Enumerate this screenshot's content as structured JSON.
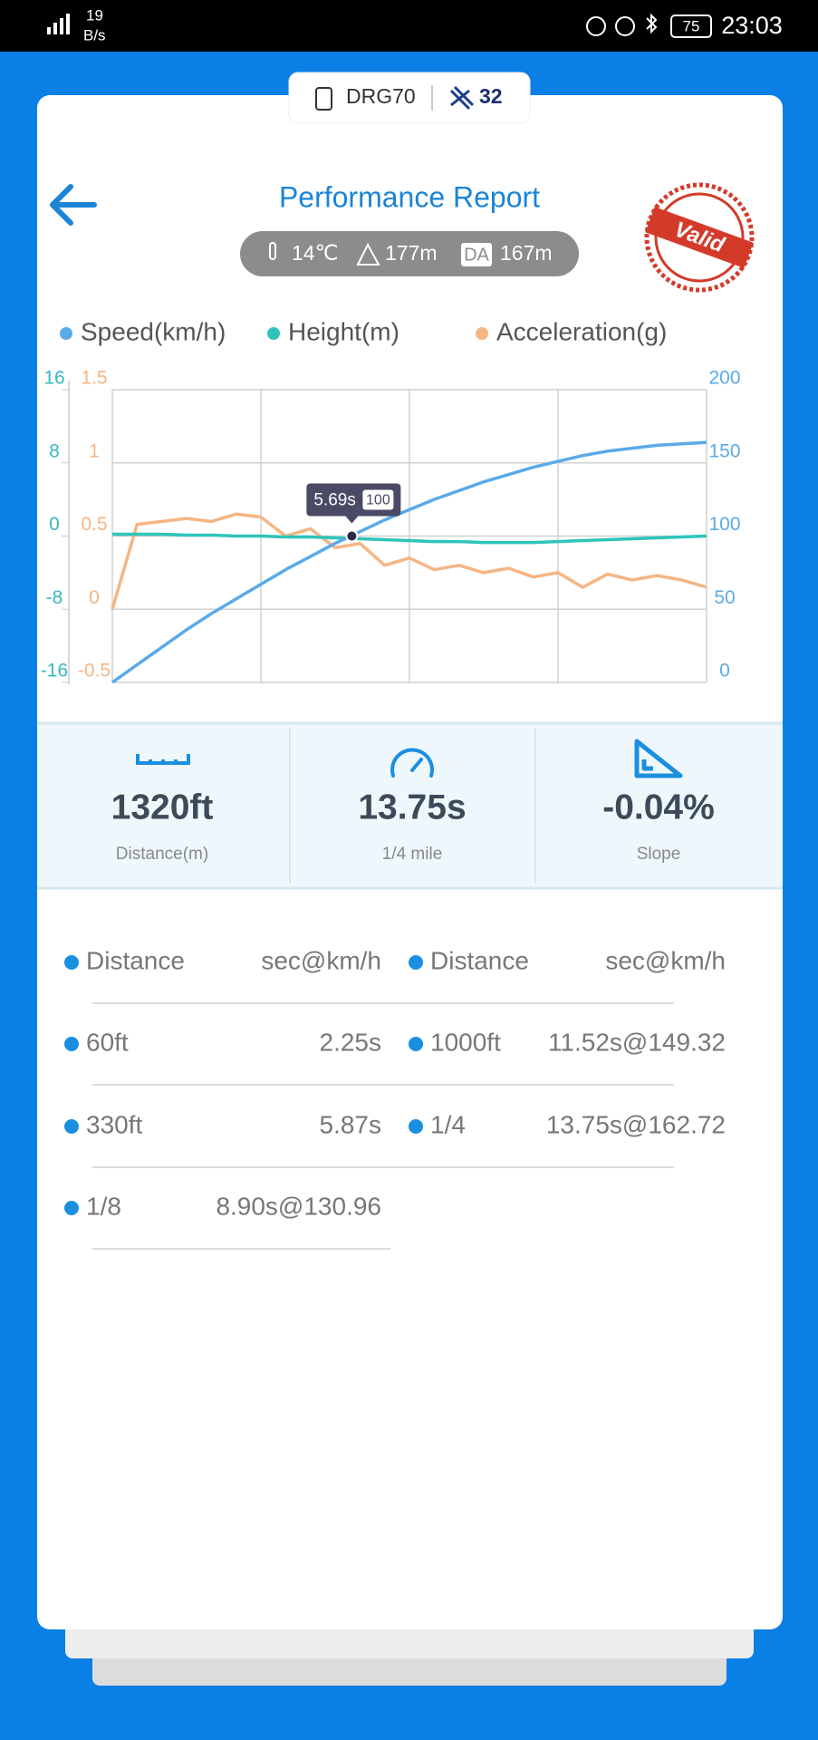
{
  "status_bar": {
    "network_rate": "19",
    "network_unit": "B/s",
    "battery": "75",
    "time": "23:03"
  },
  "device": {
    "name": "DRG70",
    "satellites": "32"
  },
  "header": {
    "title": "Performance Report",
    "stamp": "Valid"
  },
  "conditions": {
    "temperature": "14℃",
    "altitude": "177m",
    "da_badge": "DA",
    "density_altitude": "167m"
  },
  "chart_data": {
    "type": "line",
    "ylim": [
      -16,
      16
    ],
    "yticks": [
      -16,
      -8,
      0,
      8,
      16
    ],
    "y3lim": [
      -0.5,
      1.5
    ],
    "y3ticks": [
      -0.5,
      0,
      0.5,
      1,
      1.5
    ],
    "y2lim": [
      0,
      200
    ],
    "y2ticks": [
      0,
      50,
      100,
      150,
      200
    ],
    "grid": true,
    "tooltip": {
      "label": "5.69s",
      "value": 100
    },
    "series": [
      {
        "name": "Speed(km/h)",
        "color": "#5aaae8",
        "axis": "y2",
        "values": [
          0,
          12,
          24,
          36,
          47,
          57,
          67,
          77,
          86,
          95,
          103,
          111,
          118,
          125,
          131,
          137,
          142,
          147,
          151,
          155,
          158,
          160,
          162,
          163,
          164
        ]
      },
      {
        "name": "Height(m)",
        "color": "#2ec4bb",
        "axis": "y",
        "values": [
          0.2,
          0.2,
          0.2,
          0.1,
          0.1,
          0,
          0,
          -0.1,
          -0.1,
          -0.2,
          -0.3,
          -0.4,
          -0.5,
          -0.6,
          -0.6,
          -0.7,
          -0.7,
          -0.7,
          -0.6,
          -0.5,
          -0.4,
          -0.3,
          -0.2,
          -0.1,
          0
        ]
      },
      {
        "name": "Acceleration(g)",
        "color": "#f5b584",
        "axis": "y3",
        "values": [
          0,
          0.58,
          0.6,
          0.62,
          0.6,
          0.65,
          0.63,
          0.5,
          0.55,
          0.42,
          0.45,
          0.3,
          0.35,
          0.27,
          0.3,
          0.25,
          0.28,
          0.22,
          0.25,
          0.15,
          0.24,
          0.2,
          0.23,
          0.2,
          0.15
        ]
      }
    ]
  },
  "stats": [
    {
      "value": "1320ft",
      "label": "Distance(m)"
    },
    {
      "value": "13.75s",
      "label": "1/4 mile"
    },
    {
      "value": "-0.04%",
      "label": "Slope"
    }
  ],
  "table": {
    "header": [
      "Distance",
      "sec@km/h",
      "Distance",
      "sec@km/h"
    ],
    "rows": [
      [
        "60ft",
        "2.25s",
        "1000ft",
        "11.52s@149.32"
      ],
      [
        "330ft",
        "5.87s",
        "1/4",
        "13.75s@162.72"
      ],
      [
        "1/8",
        "8.90s@130.96"
      ]
    ]
  }
}
